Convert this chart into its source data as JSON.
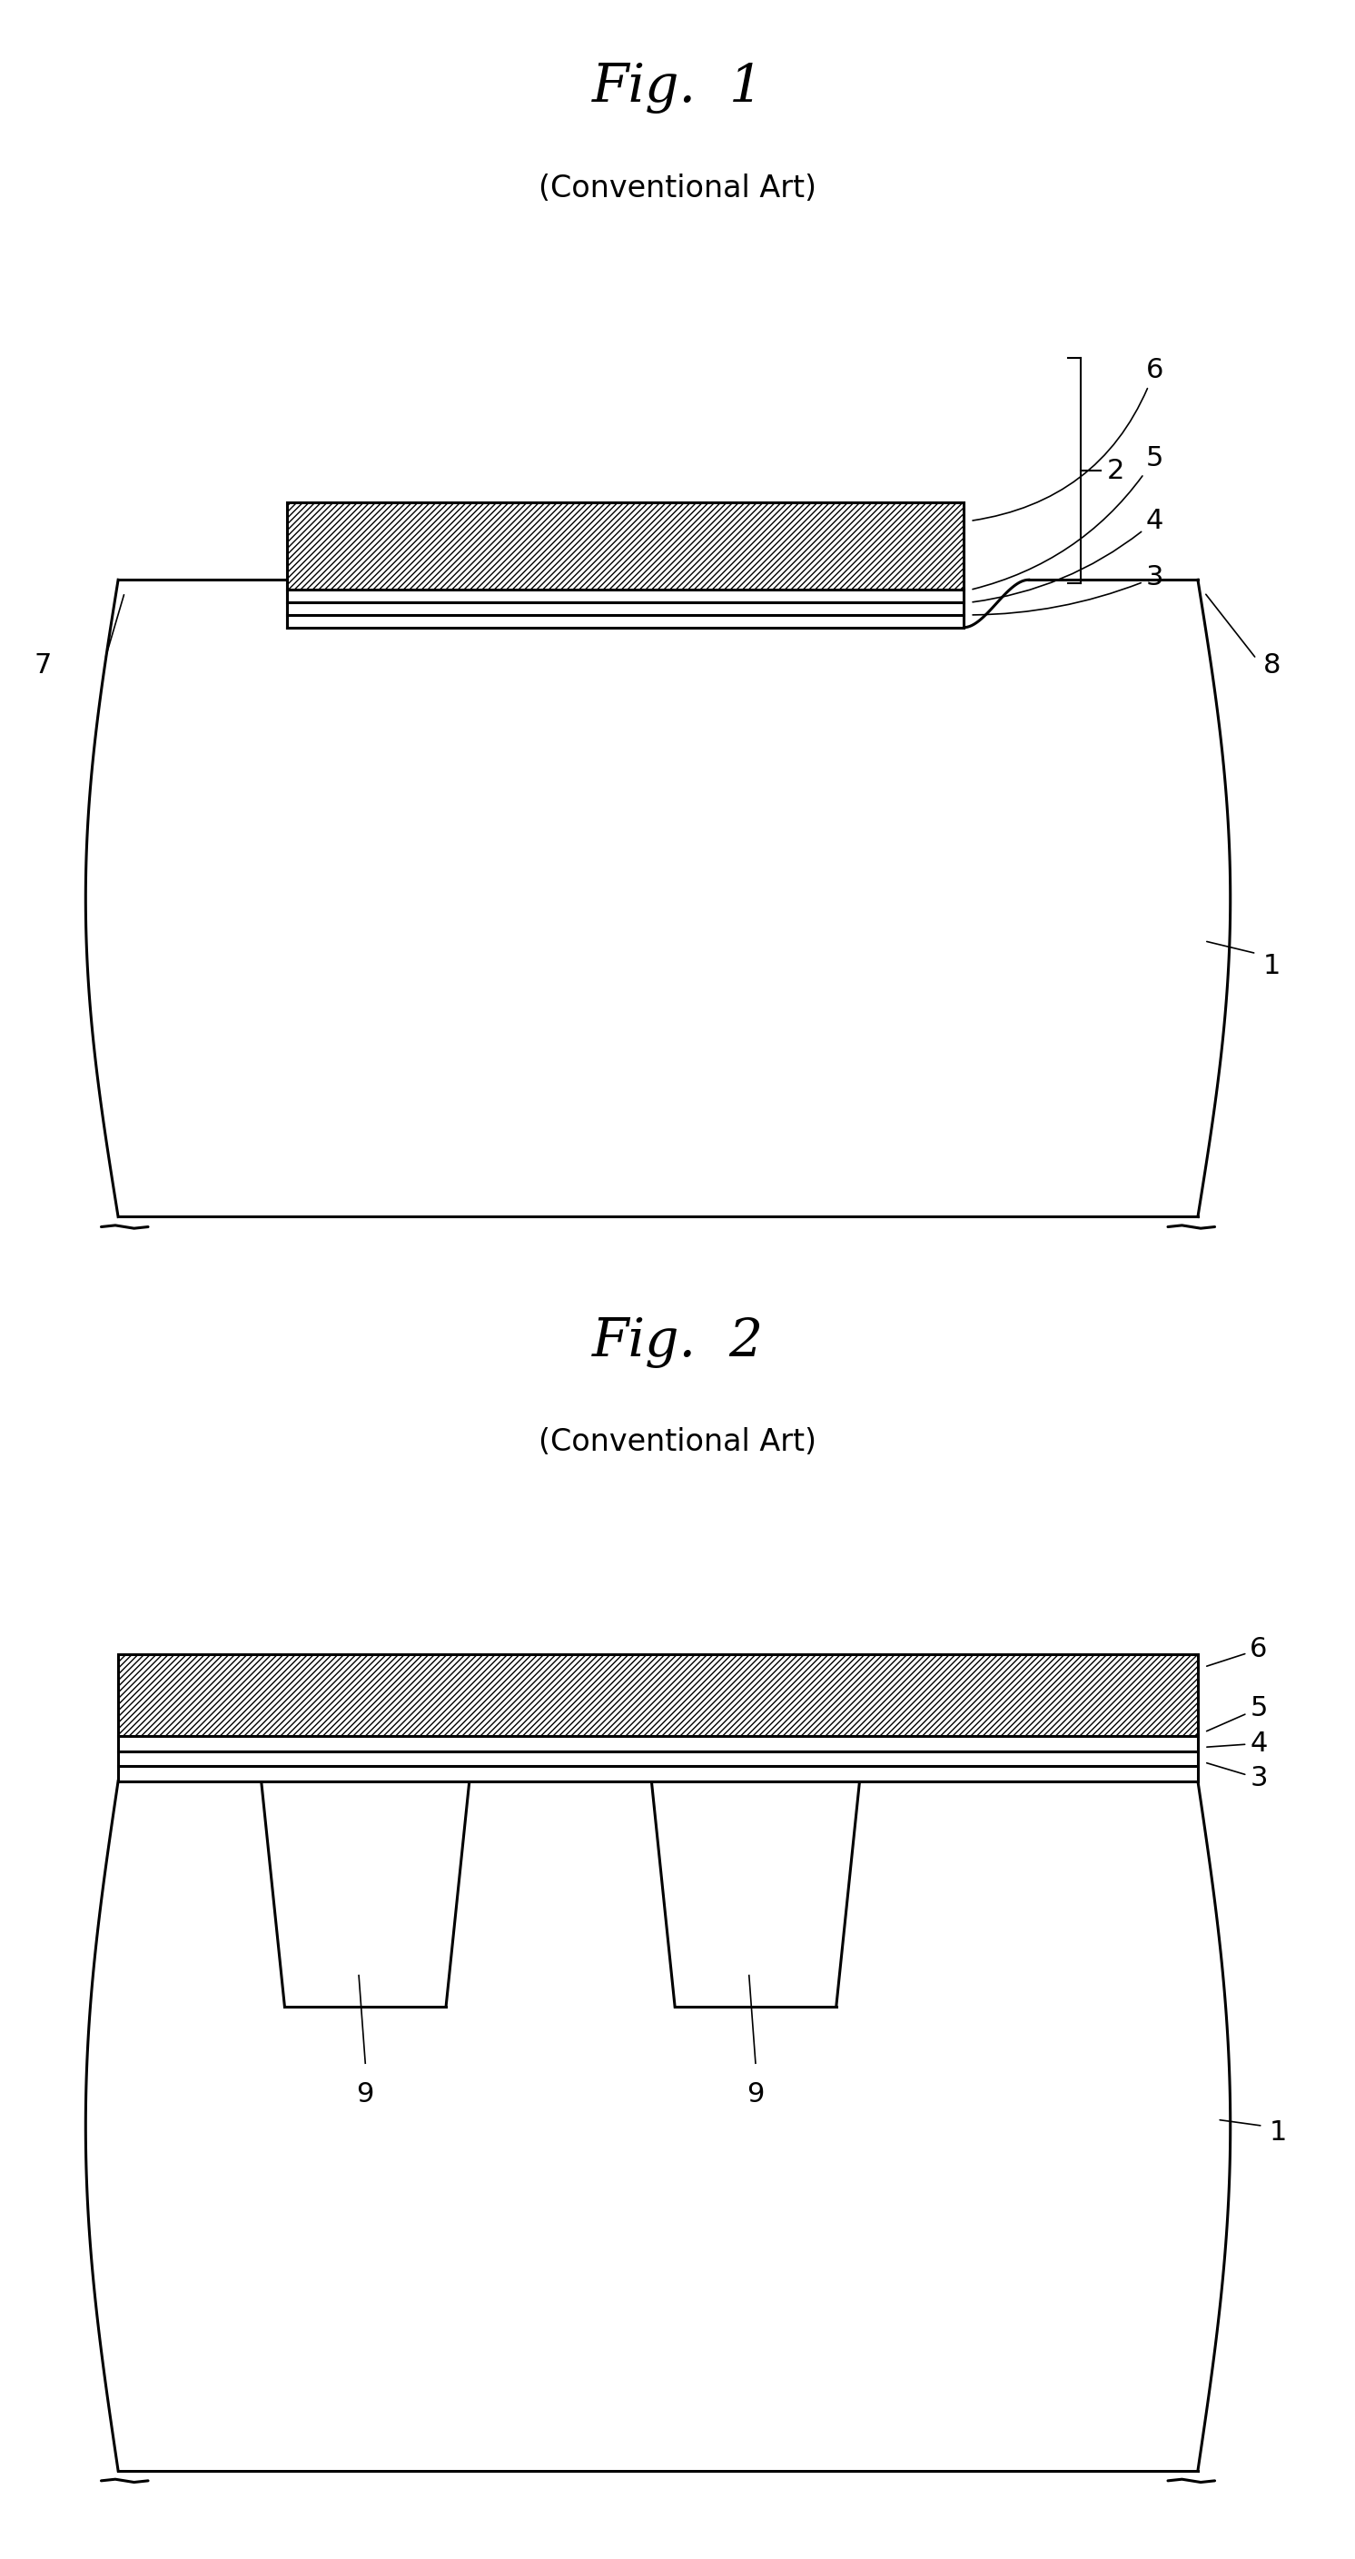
{
  "fig1_title": "Fig.  1",
  "fig2_title": "Fig.  2",
  "subtitle": "(Conventional Art)",
  "bg_color": "#ffffff",
  "line_color": "#000000",
  "title_fontsize": 42,
  "subtitle_fontsize": 24,
  "label_fontsize": 22
}
